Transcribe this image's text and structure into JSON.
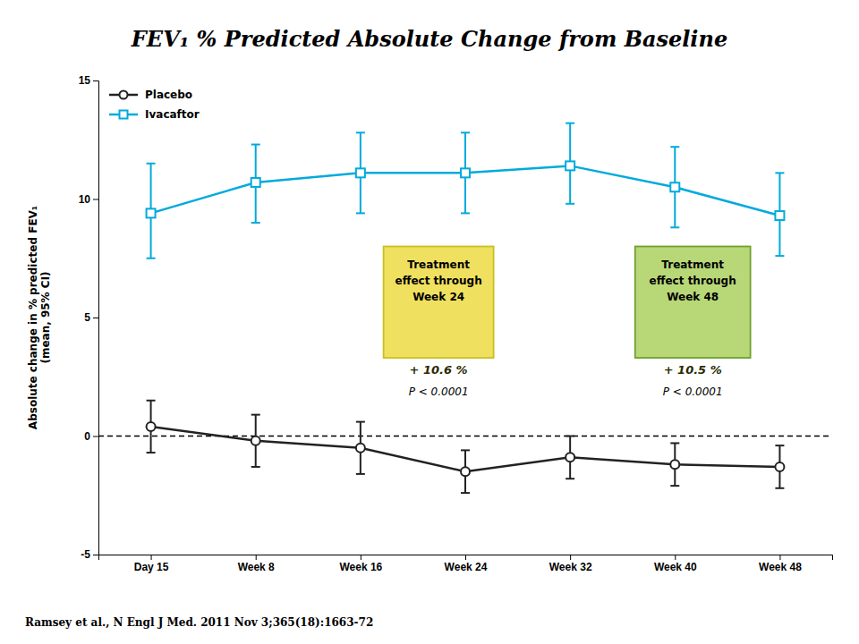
{
  "chart_data": {
    "type": "line",
    "title": "FEV₁ % Predicted Absolute Change from Baseline",
    "y_label": "Absolute change in % predicted FEV₁\n(mean, 95% CI)",
    "categories": [
      "Day 15",
      "Week 8",
      "Week 16",
      "Week 24",
      "Week 32",
      "Week 40",
      "Week 48"
    ],
    "series": [
      {
        "name": "Placebo",
        "color": "#222222",
        "marker": "circle",
        "values": [
          0.4,
          -0.2,
          -0.5,
          -1.5,
          -0.9,
          -1.2,
          -1.3
        ],
        "error_lo": [
          1.1,
          1.1,
          1.1,
          0.9,
          0.9,
          0.9,
          0.9
        ],
        "error_hi": [
          1.1,
          1.1,
          1.1,
          0.9,
          0.9,
          0.9,
          0.9
        ]
      },
      {
        "name": "Ivacaftor",
        "color": "#00AADD",
        "marker": "square",
        "values": [
          9.4,
          10.7,
          11.1,
          11.1,
          11.4,
          10.5,
          9.3
        ],
        "error_lo": [
          1.9,
          1.7,
          1.7,
          1.7,
          1.6,
          1.7,
          1.7
        ],
        "error_hi": [
          2.1,
          1.6,
          1.7,
          1.7,
          1.8,
          1.7,
          1.8
        ]
      }
    ],
    "ylim": [
      -5,
      15
    ],
    "yticks": [
      -5,
      0,
      5,
      10,
      15
    ],
    "reference_line": 0,
    "legend": "upper left",
    "grid": false,
    "annotations": [
      {
        "text": "Treatment\neffect through\nWeek 24",
        "effect": "+ 10.6 %",
        "p": "P < 0.0001",
        "color": "#F0E060",
        "edge_color": "#C8C020"
      },
      {
        "text": "Treatment\neffect through\nWeek 48",
        "effect": "+ 10.5 %",
        "p": "P < 0.0001",
        "color": "#B8D878",
        "edge_color": "#70A030"
      }
    ],
    "source": "Ramsey et al., N Engl J Med. 2011 Nov 3;365(18):1663-72"
  }
}
